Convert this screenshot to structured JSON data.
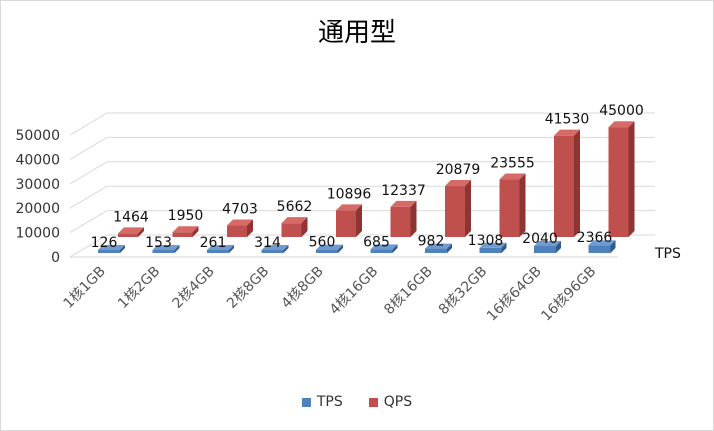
{
  "chart_data": {
    "type": "bar",
    "title": "通用型",
    "categories": [
      "1核1GB",
      "1核2GB",
      "2核4GB",
      "2核8GB",
      "4核8GB",
      "4核16GB",
      "8核16GB",
      "8核32GB",
      "16核64GB",
      "16核96GB"
    ],
    "series": [
      {
        "name": "TPS",
        "values": [
          126,
          153,
          261,
          314,
          560,
          685,
          982,
          1308,
          2040,
          2366
        ],
        "color": "#4f81bd"
      },
      {
        "name": "QPS",
        "values": [
          1464,
          1950,
          4703,
          5662,
          10896,
          12337,
          20879,
          23555,
          41530,
          45000
        ],
        "color": "#c0504d"
      }
    ],
    "y_ticks": [
      0,
      10000,
      20000,
      30000,
      40000,
      50000
    ],
    "ylim": [
      0,
      50000
    ],
    "depth_axis_label": "TPS",
    "grid": true,
    "legend_position": "bottom"
  }
}
